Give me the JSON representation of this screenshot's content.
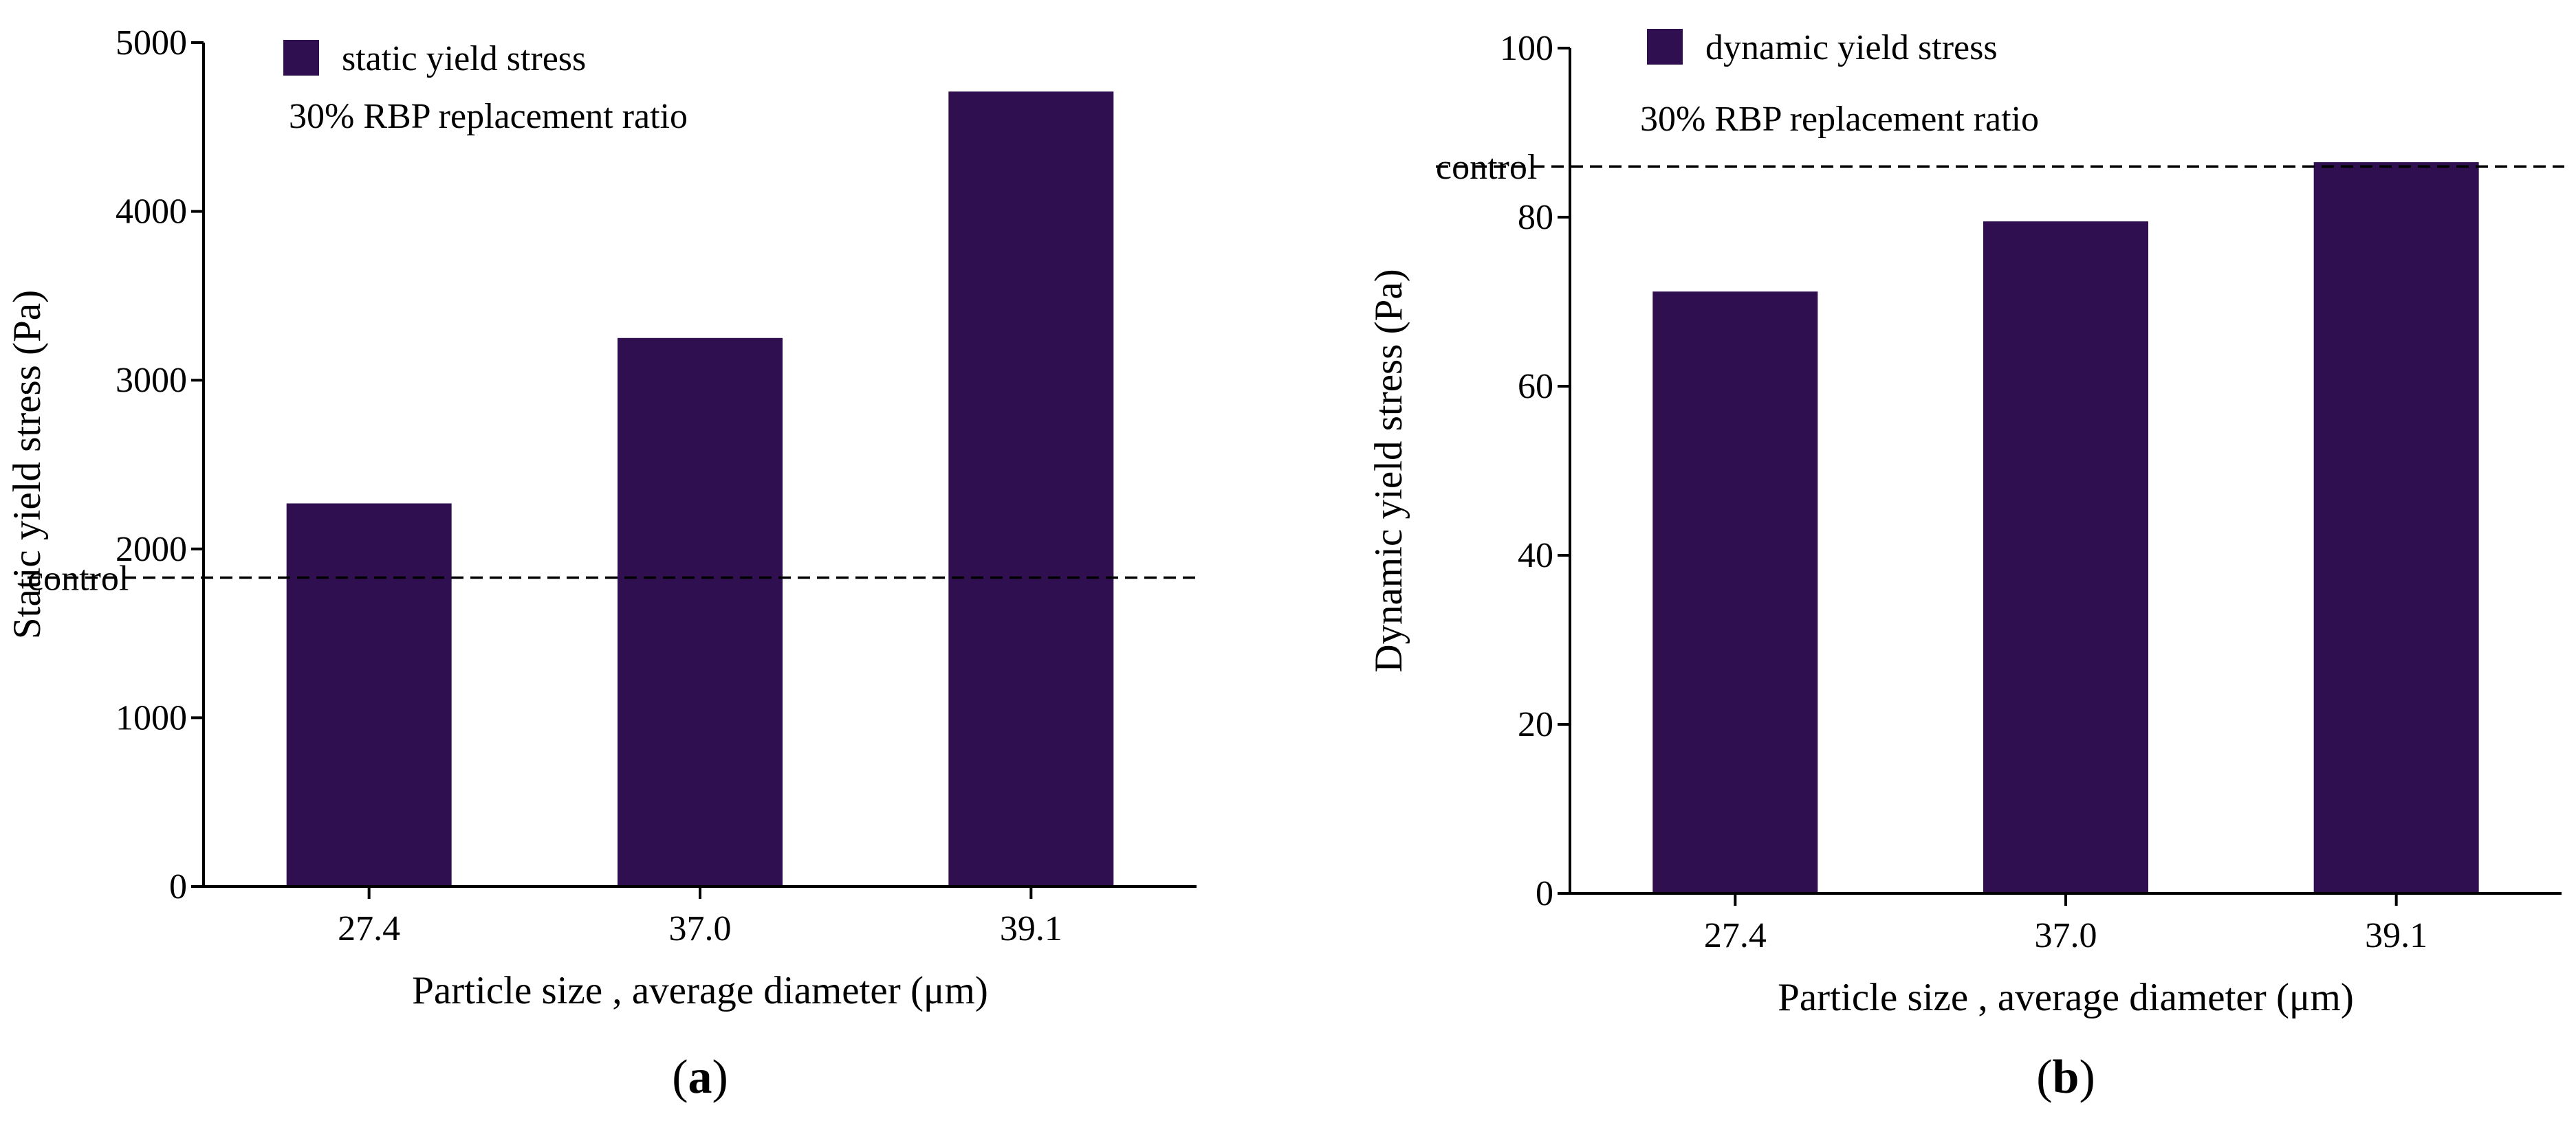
{
  "chart_data": [
    {
      "type": "bar",
      "panel_label": "a",
      "categories": [
        "27.4",
        "37.0",
        "39.1"
      ],
      "series": [
        {
          "name": "static yield stress",
          "values": [
            2270,
            3250,
            4710
          ]
        }
      ],
      "title": "",
      "xlabel": "Particle size , average diameter (μm)",
      "ylabel": "Static yield stress (Pa)",
      "ylim": [
        0,
        5000
      ],
      "yticks": [
        0,
        1000,
        2000,
        3000,
        4000,
        5000
      ],
      "annotation": "30% RBP replacement ratio",
      "reference_line": {
        "label": "control",
        "value": 1830,
        "style": "dashed"
      },
      "legend_position": "top-left",
      "grid": false,
      "bar_color": "#2f0f4f"
    },
    {
      "type": "bar",
      "panel_label": "b",
      "categories": [
        "27.4",
        "37.0",
        "39.1"
      ],
      "series": [
        {
          "name": "dynamic yield stress",
          "values": [
            71.2,
            79.5,
            86.5
          ]
        }
      ],
      "title": "",
      "xlabel": "Particle size , average diameter (μm)",
      "ylabel": "Dynamic yield stress (Pa)",
      "ylim": [
        0,
        100
      ],
      "yticks": [
        0,
        20,
        40,
        60,
        80,
        100
      ],
      "annotation": "30% RBP replacement ratio",
      "reference_line": {
        "label": "control",
        "value": 86,
        "style": "dashed"
      },
      "legend_position": "top-left",
      "grid": false,
      "bar_color": "#2f0f4f"
    }
  ]
}
